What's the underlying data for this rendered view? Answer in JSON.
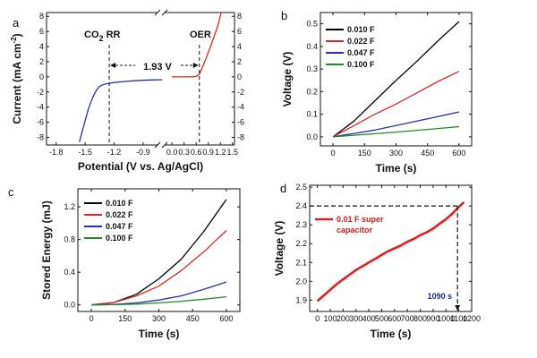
{
  "chart_data": [
    {
      "panel_label": "a",
      "type": "line",
      "xlabel": "Potential (V vs. Ag/AgCl)",
      "ylabel": "Current (mA cm",
      "ylabel_sup": "-2",
      "ylabel_close": ")",
      "ylim": [
        -9,
        8.5
      ],
      "yticks": [
        -8,
        -6,
        -4,
        -2,
        0,
        2,
        4,
        6,
        8
      ],
      "ytick_labels": [
        "-8",
        "-6",
        "-4",
        "-2",
        "0",
        "2",
        "4",
        "6",
        "8"
      ],
      "xticks_left": [
        -1.8,
        -1.5,
        -1.2,
        -0.9
      ],
      "xtick_labels_left": [
        "-1.8",
        "-1.5",
        "-1.2",
        "-0.9"
      ],
      "xticks_right": [
        0.0,
        0.3,
        0.6,
        0.9,
        1.2,
        1.5
      ],
      "xtick_labels_right": [
        "0.0",
        "0.3",
        "0.6",
        "0.9",
        "1.2",
        "1.5"
      ],
      "annotations": {
        "co2rr_main": "CO",
        "co2rr_sub": "2",
        "co2rr_rest": " RR",
        "oer": "OER",
        "gap": "1.93 V"
      },
      "marker_lines_x": [
        -1.25,
        0.68
      ],
      "series": [
        {
          "color": "#2b2fa6",
          "x": [
            -1.56,
            -1.53,
            -1.5,
            -1.47,
            -1.44,
            -1.41,
            -1.38,
            -1.35,
            -1.32,
            -1.29,
            -1.25,
            -1.2,
            -1.1,
            -1.0,
            -0.9,
            -0.8,
            -0.7
          ],
          "y": [
            -8.6,
            -7.2,
            -5.8,
            -4.4,
            -3.3,
            -2.4,
            -1.7,
            -1.25,
            -1.05,
            -0.95,
            -0.85,
            -0.75,
            -0.62,
            -0.52,
            -0.45,
            -0.4,
            -0.38
          ]
        },
        {
          "color": "#d42a2a",
          "x": [
            0.0,
            0.2,
            0.4,
            0.55,
            0.62,
            0.68,
            0.75,
            0.85,
            0.95,
            1.05,
            1.15,
            1.22
          ],
          "y": [
            0.0,
            0.0,
            0.0,
            0.02,
            0.12,
            0.35,
            1.2,
            2.5,
            3.9,
            5.4,
            7.0,
            8.5
          ]
        }
      ]
    },
    {
      "panel_label": "b",
      "type": "line",
      "xlabel": "Time (s)",
      "ylabel": "Voltage (V)",
      "xlim": [
        -60,
        660
      ],
      "ylim": [
        -0.04,
        0.55
      ],
      "xticks": [
        0,
        150,
        300,
        450,
        600
      ],
      "xtick_labels": [
        "0",
        "150",
        "300",
        "450",
        "600"
      ],
      "yticks": [
        0.0,
        0.1,
        0.2,
        0.3,
        0.4,
        0.5
      ],
      "ytick_labels": [
        "0.0",
        "0.1",
        "0.2",
        "0.3",
        "0.4",
        "0.5"
      ],
      "series": [
        {
          "name": "0.010 F",
          "color": "#000000",
          "x": [
            0,
            100,
            200,
            300,
            400,
            500,
            600
          ],
          "y": [
            0.0,
            0.07,
            0.16,
            0.25,
            0.335,
            0.425,
            0.51
          ]
        },
        {
          "name": "0.022 F",
          "color": "#d42a2a",
          "x": [
            0,
            100,
            200,
            300,
            400,
            500,
            600
          ],
          "y": [
            0.0,
            0.05,
            0.1,
            0.145,
            0.195,
            0.245,
            0.29
          ]
        },
        {
          "name": "0.047 F",
          "color": "#2b2fa6",
          "x": [
            0,
            100,
            200,
            300,
            400,
            500,
            600
          ],
          "y": [
            0.0,
            0.015,
            0.03,
            0.05,
            0.07,
            0.09,
            0.11
          ]
        },
        {
          "name": "0.100 F",
          "color": "#1f8a2a",
          "x": [
            0,
            100,
            200,
            300,
            400,
            500,
            600
          ],
          "y": [
            0.0,
            0.007,
            0.014,
            0.021,
            0.029,
            0.037,
            0.045
          ]
        }
      ]
    },
    {
      "panel_label": "c",
      "type": "line",
      "xlabel": "Time (s)",
      "ylabel": "Stored Energy (mJ)",
      "xlim": [
        -60,
        660
      ],
      "ylim": [
        -0.08,
        1.42
      ],
      "xticks": [
        0,
        150,
        300,
        450,
        600
      ],
      "xtick_labels": [
        "0",
        "150",
        "300",
        "450",
        "600"
      ],
      "yticks": [
        0.0,
        0.4,
        0.8,
        1.2
      ],
      "ytick_labels": [
        "0.0",
        "0.4",
        "0.8",
        "1.2"
      ],
      "series": [
        {
          "name": "0.010 F",
          "color": "#000000",
          "x": [
            0,
            100,
            200,
            300,
            400,
            500,
            600
          ],
          "y": [
            0.0,
            0.03,
            0.13,
            0.32,
            0.56,
            0.9,
            1.29
          ]
        },
        {
          "name": "0.022 F",
          "color": "#d42a2a",
          "x": [
            0,
            100,
            200,
            300,
            400,
            500,
            600
          ],
          "y": [
            0.0,
            0.03,
            0.11,
            0.23,
            0.42,
            0.65,
            0.91
          ]
        },
        {
          "name": "0.047 F",
          "color": "#2b2fa6",
          "x": [
            0,
            100,
            200,
            300,
            400,
            500,
            600
          ],
          "y": [
            0.0,
            0.005,
            0.025,
            0.06,
            0.11,
            0.19,
            0.28
          ]
        },
        {
          "name": "0.100 F",
          "color": "#1f8a2a",
          "x": [
            0,
            100,
            200,
            300,
            400,
            500,
            600
          ],
          "y": [
            0.0,
            0.003,
            0.01,
            0.025,
            0.045,
            0.07,
            0.1
          ]
        }
      ]
    },
    {
      "panel_label": "d",
      "type": "line",
      "xlabel": "Time (s)",
      "ylabel": "Voltage (V)",
      "xlim": [
        -60,
        1200
      ],
      "ylim": [
        1.84,
        2.51
      ],
      "xticks": [
        0,
        100,
        200,
        300,
        400,
        500,
        600,
        700,
        800,
        900,
        1000,
        1100,
        1200
      ],
      "xtick_labels": [
        "0",
        "100",
        "200",
        "300",
        "400",
        "500",
        "600",
        "700",
        "800",
        "900",
        "1000",
        "1100",
        "1200"
      ],
      "yticks": [
        1.9,
        2.0,
        2.1,
        2.2,
        2.3,
        2.4,
        2.5
      ],
      "ytick_labels": [
        "1.9",
        "2.0",
        "2.1",
        "2.2",
        "2.3",
        "2.4",
        "2.5"
      ],
      "legend_line1": "0.01 F super",
      "legend_line2": "capacitor",
      "annotation": "1090 s",
      "ref_x": 1090,
      "ref_y": 2.4,
      "series": [
        {
          "name": "0.01 F super capacitor",
          "color": "#e02020",
          "x": [
            0,
            50,
            100,
            150,
            200,
            250,
            300,
            350,
            400,
            450,
            500,
            550,
            600,
            650,
            700,
            750,
            800,
            850,
            900,
            950,
            1000,
            1050,
            1100,
            1140
          ],
          "y": [
            1.895,
            1.925,
            1.955,
            1.985,
            2.01,
            2.035,
            2.06,
            2.08,
            2.1,
            2.12,
            2.14,
            2.16,
            2.175,
            2.19,
            2.21,
            2.225,
            2.245,
            2.26,
            2.28,
            2.305,
            2.33,
            2.36,
            2.395,
            2.42
          ]
        }
      ]
    }
  ]
}
